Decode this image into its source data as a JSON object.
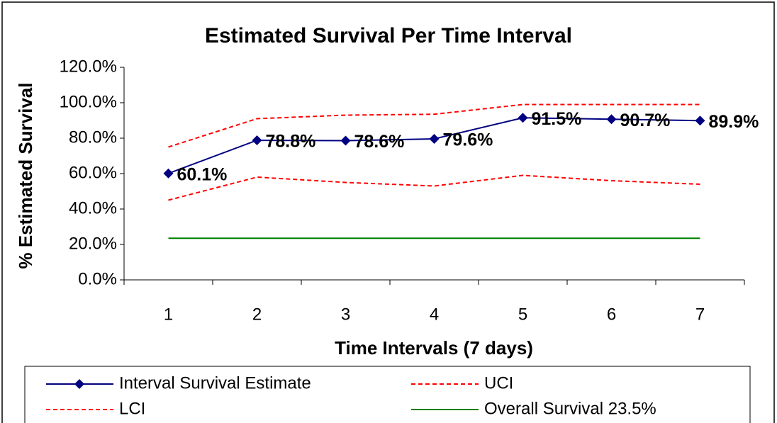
{
  "chart_data": {
    "type": "line",
    "title": "Estimated Survival Per Time Interval",
    "x_label": "Time Intervals (7 days)",
    "y_label": "% Estimated Survival",
    "categories": [
      "1",
      "2",
      "3",
      "4",
      "5",
      "6",
      "7"
    ],
    "ylim": [
      0,
      120
    ],
    "yticks": [
      {
        "value": 0,
        "label": "0.0%"
      },
      {
        "value": 20,
        "label": "20.0%"
      },
      {
        "value": 40,
        "label": "40.0%"
      },
      {
        "value": 60,
        "label": "60.0%"
      },
      {
        "value": 80,
        "label": "80.0%"
      },
      {
        "value": 100,
        "label": "100.0%"
      },
      {
        "value": 120,
        "label": "120.0%"
      }
    ],
    "grid": false,
    "legend": "bottom",
    "series": [
      {
        "name": "Interval Survival Estimate",
        "color": "#000080",
        "marker": "diamond",
        "dash": "solid",
        "values": [
          60.1,
          78.8,
          78.6,
          79.6,
          91.5,
          90.7,
          89.9
        ],
        "value_labels": [
          "60.1%",
          "78.8%",
          "78.6%",
          "79.6%",
          "91.5%",
          "90.7%",
          "89.9%"
        ]
      },
      {
        "name": "UCI",
        "color": "#ff0000",
        "marker": "none",
        "dash": "dotted",
        "values": [
          75,
          91,
          93,
          93.5,
          99,
          99,
          99
        ]
      },
      {
        "name": "LCI",
        "color": "#ff0000",
        "marker": "none",
        "dash": "dotted",
        "values": [
          45,
          58,
          55,
          53,
          59,
          56,
          54
        ]
      },
      {
        "name": "Overall Survival 23.5%",
        "color": "#008000",
        "marker": "none",
        "dash": "solid",
        "values": [
          23.5,
          23.5,
          23.5,
          23.5,
          23.5,
          23.5,
          23.5
        ]
      }
    ]
  }
}
